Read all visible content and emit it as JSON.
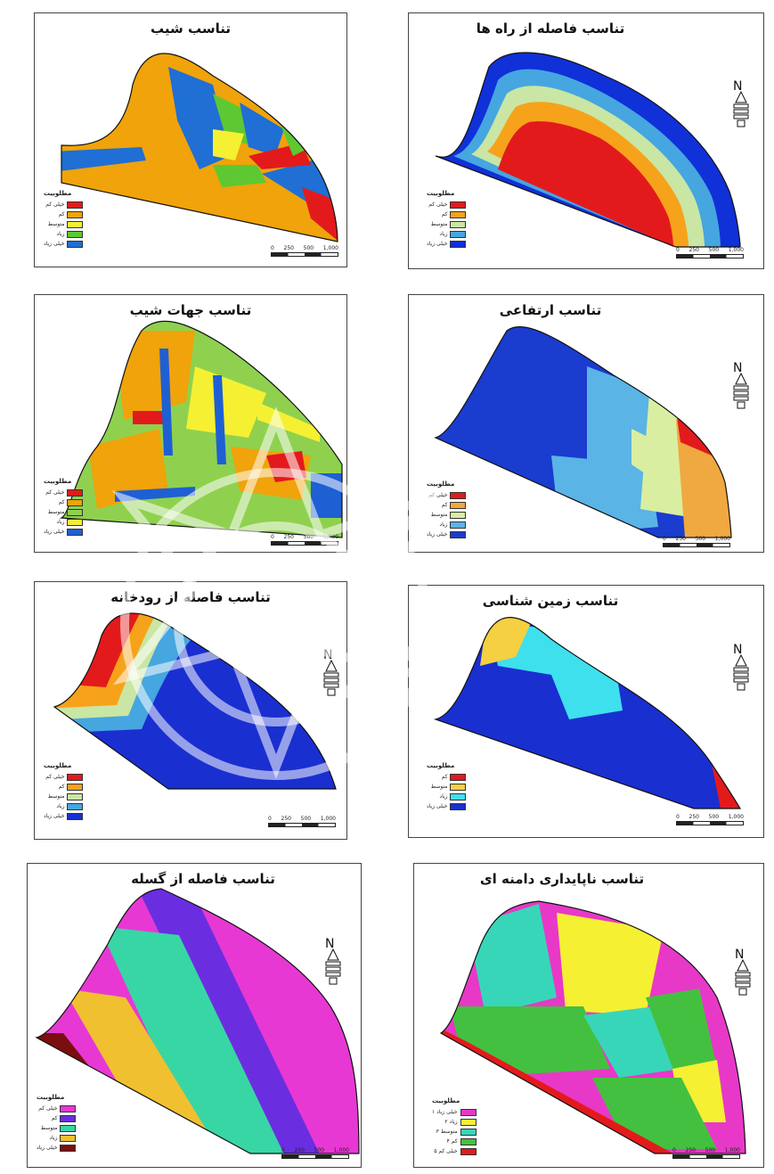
{
  "legend_title": "مطلوبیت",
  "north_label": "N",
  "scale_ticks_a": [
    "0",
    "250",
    "500",
    "1,000"
  ],
  "scale_unit": "M",
  "panels": [
    {
      "id": "slope",
      "title": "تناسب شیب",
      "legend": [
        {
          "label": "خیلی کم",
          "color": "#e31a1c"
        },
        {
          "label": "کم",
          "color": "#f0a30a"
        },
        {
          "label": "متوسط",
          "color": "#f5f032"
        },
        {
          "label": "زیاد",
          "color": "#5ec832"
        },
        {
          "label": "خیلی زیاد",
          "color": "#1f6fd4"
        }
      ]
    },
    {
      "id": "road-distance",
      "title": "تناسب فاصله از راه ها",
      "legend": [
        {
          "label": "خیلی کم",
          "color": "#e31a1c"
        },
        {
          "label": "کم",
          "color": "#f7a21b"
        },
        {
          "label": "متوسط",
          "color": "#c9e6a4"
        },
        {
          "label": "زیاد",
          "color": "#45a6e0"
        },
        {
          "label": "خیلی زیاد",
          "color": "#1030d8"
        }
      ]
    },
    {
      "id": "slope-aspect",
      "title": "تناسب جهات شیب",
      "legend": [
        {
          "label": "خیلی کم",
          "color": "#e31a1c"
        },
        {
          "label": "کم",
          "color": "#f0a30a"
        },
        {
          "label": "متوسط",
          "color": "#8fd14f"
        },
        {
          "label": "زیاد",
          "color": "#f5f032"
        },
        {
          "label": "خیلی زیاد",
          "color": "#1f5fd4"
        }
      ]
    },
    {
      "id": "elevation",
      "title": "تناسب ارتفاعی",
      "legend": [
        {
          "label": "خیلی کم",
          "color": "#e31a1c"
        },
        {
          "label": "کم",
          "color": "#f0a840"
        },
        {
          "label": "متوسط",
          "color": "#d9eea0"
        },
        {
          "label": "زیاد",
          "color": "#5ab4e6"
        },
        {
          "label": "خیلی زیاد",
          "color": "#1a3ccf"
        }
      ]
    },
    {
      "id": "river-distance",
      "title": "تناسب فاصله از رودخانه",
      "legend": [
        {
          "label": "خیلی کم",
          "color": "#e31a1c"
        },
        {
          "label": "کم",
          "color": "#f7a21b"
        },
        {
          "label": "متوسط",
          "color": "#c9e6a4"
        },
        {
          "label": "زیاد",
          "color": "#45a6e0"
        },
        {
          "label": "خیلی زیاد",
          "color": "#1a2fd0"
        }
      ]
    },
    {
      "id": "geology",
      "title": "تناسب زمین شناسی",
      "legend": [
        {
          "label": "کم",
          "color": "#e31a1c"
        },
        {
          "label": "متوسط",
          "color": "#f5d040"
        },
        {
          "label": "زیاد",
          "color": "#3ee0ee"
        },
        {
          "label": "خیلی زیاد",
          "color": "#1a2fd0"
        }
      ]
    },
    {
      "id": "fault-distance",
      "title": "تناسب فاصله از گسله",
      "legend": [
        {
          "label": "خیلی کم",
          "color": "#e838d4"
        },
        {
          "label": "کم",
          "color": "#6a2ee0"
        },
        {
          "label": "متوسط",
          "color": "#38d6a4"
        },
        {
          "label": "زیاد",
          "color": "#f0c030"
        },
        {
          "label": "خیلی زیاد",
          "color": "#7a0f0f"
        }
      ]
    },
    {
      "id": "slope-stability",
      "title": "تناسب ناپایداری دامنه ای",
      "legend": [
        {
          "label": "خیلی زیاد ۱",
          "color": "#e838c8"
        },
        {
          "label": "زیاد ۲",
          "color": "#f5f032"
        },
        {
          "label": "متوسط ۳",
          "color": "#38d6b8"
        },
        {
          "label": "کم ۴",
          "color": "#44c040"
        },
        {
          "label": "خیلی کم ۵",
          "color": "#e31a1c"
        }
      ]
    }
  ]
}
